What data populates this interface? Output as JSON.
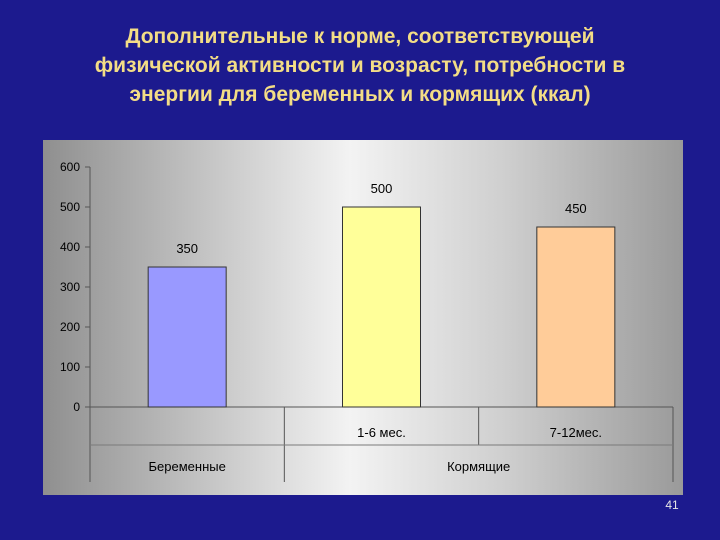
{
  "slide": {
    "title_lines": [
      "Дополнительные к норме, соответствующей",
      "физической активности и возрасту, потребности в",
      "энергии для беременных и кормящих (ккал)"
    ],
    "page_number": "41"
  },
  "colors": {
    "background": "#1c1a8e",
    "title": "#f3dd86",
    "bars": [
      "#9999ff",
      "#ffff99",
      "#ffcc99"
    ]
  },
  "chart_data": {
    "type": "bar",
    "title": "",
    "xlabel": "",
    "ylabel": "",
    "categories": [
      "",
      "1-6 мес.",
      "7-12мес."
    ],
    "groups": [
      {
        "label": "Беременные",
        "categories": [
          0
        ]
      },
      {
        "label": "Кормящие",
        "categories": [
          1,
          2
        ]
      }
    ],
    "values": [
      350,
      500,
      450
    ],
    "data_labels": [
      "350",
      "500",
      "450"
    ],
    "ylim": [
      0,
      600
    ],
    "yticks": [
      "0",
      "100",
      "200",
      "300",
      "400",
      "500",
      "600"
    ],
    "grid": false,
    "legend": "none"
  }
}
